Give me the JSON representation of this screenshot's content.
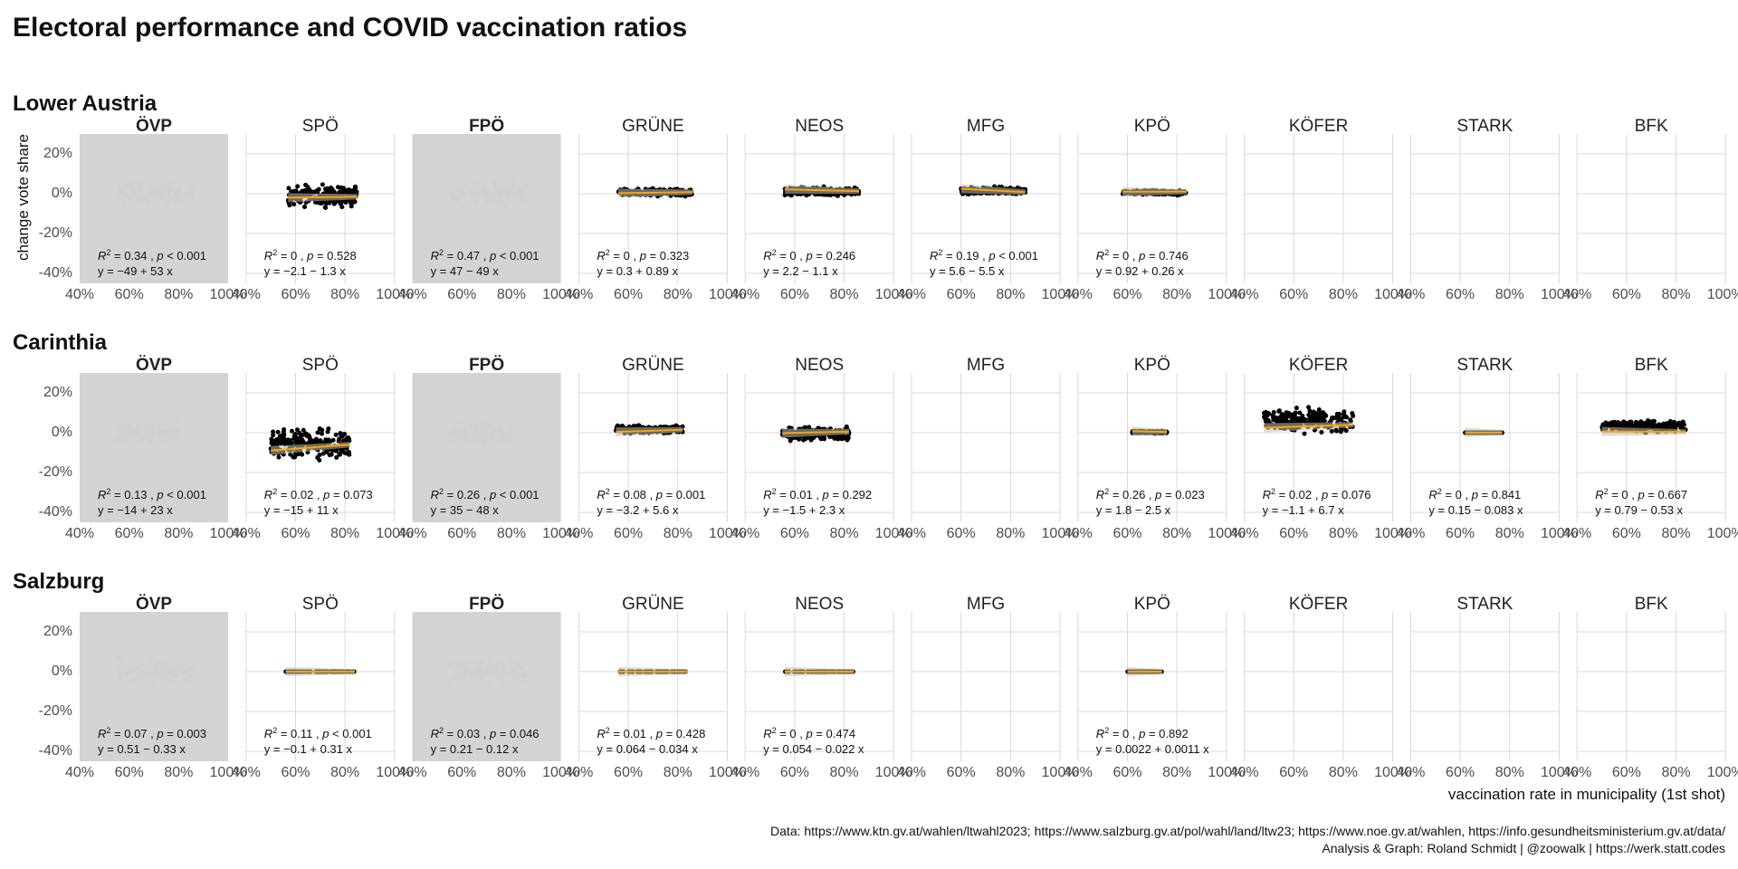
{
  "page": {
    "title": "Electoral performance and COVID vaccination ratios",
    "x_axis_label": "vaccination rate in municipality (1st shot)",
    "y_axis_label": "change vote share",
    "caption_lines": [
      "Data: https://www.ktn.gv.at/wahlen/ltwahl2023; https://www.salzburg.gv.at/pol/wahl/land/ltw23; https://www.noe.gv.at/wahlen, https://info.gesundheitsministerium.gv.at/data/",
      "Analysis & Graph: Roland Schmidt | @zoowalk | https://werk.statt.codes"
    ]
  },
  "chart_data": {
    "type": "scatter",
    "x_ticks": [
      "40%",
      "60%",
      "80%",
      "100%"
    ],
    "y_ticks": [
      "20%",
      "0%",
      "-20%",
      "-40%"
    ],
    "xlim": [
      0.4,
      1.0
    ],
    "ylim": [
      -0.45,
      0.3
    ],
    "parties": [
      "ÖVP",
      "SPÖ",
      "FPÖ",
      "GRÜNE",
      "NEOS",
      "MFG",
      "KPÖ",
      "KÖFER",
      "STARK",
      "BFK"
    ],
    "highlight_parties": [
      "ÖVP",
      "FPÖ"
    ],
    "regions": [
      {
        "name": "Lower Austria",
        "panels": [
          {
            "party": "ÖVP",
            "has_data": true,
            "highlight": true,
            "x_range": [
              0.55,
              0.86
            ],
            "y_range": [
              -0.08,
              0.08
            ],
            "trend_start": 0.0,
            "trend_end": 0.0,
            "stat_r2": "0.34",
            "stat_p": "< 0.001",
            "stat_eq": "y = −49 + 53 x"
          },
          {
            "party": "SPÖ",
            "has_data": true,
            "highlight": false,
            "x_range": [
              0.57,
              0.85
            ],
            "y_range": [
              -0.08,
              0.06
            ],
            "trend_start": -0.02,
            "trend_end": -0.015,
            "stat_r2": "0",
            "stat_p": "= 0.528",
            "stat_eq": "y = −2.1 − 1.3 x"
          },
          {
            "party": "FPÖ",
            "has_data": true,
            "highlight": true,
            "x_range": [
              0.55,
              0.86
            ],
            "y_range": [
              -0.08,
              0.08
            ],
            "trend_start": 0.0,
            "trend_end": 0.0,
            "stat_r2": "0.47",
            "stat_p": "< 0.001",
            "stat_eq": "y = 47 − 49 x"
          },
          {
            "party": "GRÜNE",
            "has_data": true,
            "highlight": false,
            "x_range": [
              0.56,
              0.86
            ],
            "y_range": [
              -0.02,
              0.03
            ],
            "trend_start": 0.003,
            "trend_end": 0.008,
            "stat_r2": "0",
            "stat_p": "= 0.323",
            "stat_eq": "y = 0.3 + 0.89 x"
          },
          {
            "party": "NEOS",
            "has_data": true,
            "highlight": false,
            "x_range": [
              0.56,
              0.86
            ],
            "y_range": [
              -0.02,
              0.04
            ],
            "trend_start": 0.022,
            "trend_end": 0.013,
            "stat_r2": "0",
            "stat_p": "= 0.246",
            "stat_eq": "y = 2.2 − 1.1 x"
          },
          {
            "party": "MFG",
            "has_data": true,
            "highlight": false,
            "x_range": [
              0.6,
              0.86
            ],
            "y_range": [
              -0.01,
              0.04
            ],
            "trend_start": 0.025,
            "trend_end": 0.008,
            "stat_r2": "0.19",
            "stat_p": "< 0.001",
            "stat_eq": "y = 5.6 − 5.5 x"
          },
          {
            "party": "KPÖ",
            "has_data": true,
            "highlight": false,
            "x_range": [
              0.58,
              0.84
            ],
            "y_range": [
              -0.01,
              0.02
            ],
            "trend_start": 0.01,
            "trend_end": 0.011,
            "stat_r2": "0",
            "stat_p": "= 0.746",
            "stat_eq": "y = 0.92 + 0.26 x"
          },
          {
            "party": "KÖFER",
            "has_data": false
          },
          {
            "party": "STARK",
            "has_data": false
          },
          {
            "party": "BFK",
            "has_data": false
          }
        ]
      },
      {
        "name": "Carinthia",
        "panels": [
          {
            "party": "ÖVP",
            "has_data": true,
            "highlight": true,
            "x_range": [
              0.55,
              0.8
            ],
            "y_range": [
              -0.08,
              0.08
            ],
            "trend_start": 0.0,
            "trend_end": 0.0,
            "stat_r2": "0.13",
            "stat_p": "< 0.001",
            "stat_eq": "y = −14 + 23 x"
          },
          {
            "party": "SPÖ",
            "has_data": true,
            "highlight": false,
            "x_range": [
              0.5,
              0.82
            ],
            "y_range": [
              -0.15,
              0.04
            ],
            "trend_start": -0.09,
            "trend_end": -0.06,
            "stat_r2": "0.02",
            "stat_p": "= 0.073",
            "stat_eq": "y = −15 + 11 x"
          },
          {
            "party": "FPÖ",
            "has_data": true,
            "highlight": true,
            "x_range": [
              0.55,
              0.8
            ],
            "y_range": [
              -0.08,
              0.08
            ],
            "trend_start": 0.0,
            "trend_end": 0.0,
            "stat_r2": "0.26",
            "stat_p": "< 0.001",
            "stat_eq": "y = 35 − 48 x"
          },
          {
            "party": "GRÜNE",
            "has_data": true,
            "highlight": false,
            "x_range": [
              0.55,
              0.82
            ],
            "y_range": [
              -0.01,
              0.04
            ],
            "trend_start": 0.004,
            "trend_end": 0.015,
            "stat_r2": "0.08",
            "stat_p": "= 0.001",
            "stat_eq": "y = −3.2 + 5.6 x"
          },
          {
            "party": "NEOS",
            "has_data": true,
            "highlight": false,
            "x_range": [
              0.55,
              0.82
            ],
            "y_range": [
              -0.05,
              0.04
            ],
            "trend_start": -0.002,
            "trend_end": 0.005,
            "stat_r2": "0.01",
            "stat_p": "= 0.292",
            "stat_eq": "y = −1.5 + 2.3 x"
          },
          {
            "party": "MFG",
            "has_data": false
          },
          {
            "party": "KPÖ",
            "has_data": true,
            "highlight": false,
            "x_range": [
              0.62,
              0.76
            ],
            "y_range": [
              -0.005,
              0.01
            ],
            "trend_start": 0.008,
            "trend_end": 0.004,
            "stat_r2": "0.26",
            "stat_p": "= 0.023",
            "stat_eq": "y = 1.8 − 2.5 x"
          },
          {
            "party": "KÖFER",
            "has_data": true,
            "highlight": false,
            "x_range": [
              0.48,
              0.84
            ],
            "y_range": [
              -0.02,
              0.14
            ],
            "trend_start": 0.025,
            "trend_end": 0.04,
            "stat_r2": "0.02",
            "stat_p": "= 0.076",
            "stat_eq": "y = −1.1 + 6.7 x"
          },
          {
            "party": "STARK",
            "has_data": true,
            "highlight": false,
            "x_range": [
              0.62,
              0.77
            ],
            "y_range": [
              -0.003,
              0.003
            ],
            "trend_start": 0.0006,
            "trend_end": 0.0005,
            "stat_r2": "0",
            "stat_p": "= 0.841",
            "stat_eq": "y = 0.15 − 0.083 x"
          },
          {
            "party": "BFK",
            "has_data": true,
            "highlight": false,
            "x_range": [
              0.5,
              0.84
            ],
            "y_range": [
              -0.005,
              0.07
            ],
            "trend_start": 0.006,
            "trend_end": 0.004,
            "stat_r2": "0",
            "stat_p": "= 0.667",
            "stat_eq": "y = 0.79 − 0.53 x"
          }
        ]
      },
      {
        "name": "Salzburg",
        "panels": [
          {
            "party": "ÖVP",
            "has_data": true,
            "highlight": true,
            "x_range": [
              0.55,
              0.86
            ],
            "y_range": [
              -0.08,
              0.08
            ],
            "trend_start": 0.0,
            "trend_end": 0.0,
            "stat_r2": "0.07",
            "stat_p": "= 0.003",
            "stat_eq": "y = 0.51 − 0.33 x"
          },
          {
            "party": "SPÖ",
            "has_data": true,
            "highlight": false,
            "x_range": [
              0.56,
              0.84
            ],
            "y_range": [
              -0.0005,
              0.0005
            ],
            "trend_start": 0.0,
            "trend_end": 0.0,
            "stat_r2": "0.11",
            "stat_p": "< 0.001",
            "stat_eq": "y = −0.1 + 0.31 x"
          },
          {
            "party": "FPÖ",
            "has_data": true,
            "highlight": true,
            "x_range": [
              0.55,
              0.86
            ],
            "y_range": [
              -0.08,
              0.08
            ],
            "trend_start": 0.0,
            "trend_end": 0.0,
            "stat_r2": "0.03",
            "stat_p": "= 0.046",
            "stat_eq": "y = 0.21 − 0.12 x"
          },
          {
            "party": "GRÜNE",
            "has_data": true,
            "highlight": false,
            "x_range": [
              0.56,
              0.84
            ],
            "y_range": [
              -0.0005,
              0.0005
            ],
            "trend_start": 0.0,
            "trend_end": 0.0,
            "stat_r2": "0.01",
            "stat_p": "= 0.428",
            "stat_eq": "y = 0.064 − 0.034 x"
          },
          {
            "party": "NEOS",
            "has_data": true,
            "highlight": false,
            "x_range": [
              0.56,
              0.84
            ],
            "y_range": [
              -0.0005,
              0.0005
            ],
            "trend_start": 0.0,
            "trend_end": 0.0,
            "stat_r2": "0",
            "stat_p": "= 0.474",
            "stat_eq": "y = 0.054 − 0.022 x"
          },
          {
            "party": "MFG",
            "has_data": false
          },
          {
            "party": "KPÖ",
            "has_data": true,
            "highlight": false,
            "x_range": [
              0.6,
              0.74
            ],
            "y_range": [
              -0.0005,
              0.0005
            ],
            "trend_start": 0.0,
            "trend_end": 0.0,
            "stat_r2": "0",
            "stat_p": "= 0.892",
            "stat_eq": "y = 0.0022 + 0.0011 x"
          },
          {
            "party": "KÖFER",
            "has_data": false
          },
          {
            "party": "STARK",
            "has_data": false
          },
          {
            "party": "BFK",
            "has_data": false
          }
        ]
      }
    ]
  }
}
